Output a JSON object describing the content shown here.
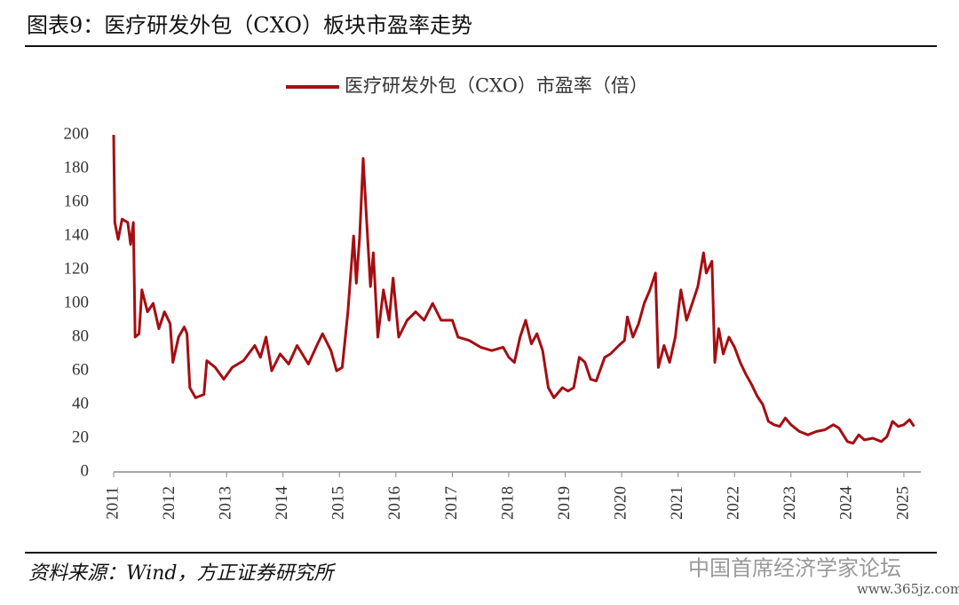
{
  "chart_data": {
    "type": "line",
    "title": "图表9：医疗研发外包（CXO）板块市盈率走势",
    "source": "资料来源：Wind，方正证券研究所",
    "watermark": "中国首席经济学家论坛",
    "watermark_url": "www.365jz.com",
    "x": [
      2011.0,
      2011.02,
      2011.08,
      2011.15,
      2011.25,
      2011.3,
      2011.35,
      2011.38,
      2011.45,
      2011.5,
      2011.6,
      2011.7,
      2011.8,
      2011.9,
      2012.0,
      2012.05,
      2012.15,
      2012.25,
      2012.3,
      2012.35,
      2012.45,
      2012.6,
      2012.65,
      2012.8,
      2012.95,
      2013.1,
      2013.3,
      2013.5,
      2013.6,
      2013.7,
      2013.8,
      2013.95,
      2014.1,
      2014.25,
      2014.45,
      2014.6,
      2014.7,
      2014.85,
      2014.95,
      2015.05,
      2015.15,
      2015.25,
      2015.3,
      2015.36,
      2015.42,
      2015.48,
      2015.55,
      2015.6,
      2015.68,
      2015.78,
      2015.88,
      2015.95,
      2016.05,
      2016.2,
      2016.35,
      2016.5,
      2016.65,
      2016.8,
      2017.0,
      2017.1,
      2017.3,
      2017.5,
      2017.7,
      2017.9,
      2018.0,
      2018.1,
      2018.2,
      2018.3,
      2018.4,
      2018.5,
      2018.6,
      2018.7,
      2018.8,
      2018.95,
      2019.05,
      2019.15,
      2019.25,
      2019.35,
      2019.45,
      2019.55,
      2019.7,
      2019.8,
      2019.95,
      2020.05,
      2020.1,
      2020.2,
      2020.3,
      2020.4,
      2020.5,
      2020.6,
      2020.65,
      2020.75,
      2020.85,
      2020.95,
      2021.0,
      2021.05,
      2021.15,
      2021.25,
      2021.35,
      2021.45,
      2021.5,
      2021.6,
      2021.65,
      2021.72,
      2021.8,
      2021.9,
      2022.0,
      2022.1,
      2022.2,
      2022.3,
      2022.4,
      2022.5,
      2022.6,
      2022.7,
      2022.8,
      2022.9,
      2023.0,
      2023.15,
      2023.3,
      2023.45,
      2023.6,
      2023.75,
      2023.85,
      2024.0,
      2024.1,
      2024.2,
      2024.3,
      2024.45,
      2024.6,
      2024.7,
      2024.8,
      2024.9,
      2025.0,
      2025.1,
      2025.18
    ],
    "series": [
      {
        "name": "医疗研发外包（CXO）市盈率（倍）",
        "color": "#a50d12",
        "values": [
          200,
          148,
          138,
          150,
          148,
          135,
          148,
          80,
          82,
          108,
          95,
          100,
          85,
          95,
          88,
          65,
          80,
          86,
          82,
          50,
          44,
          46,
          66,
          62,
          55,
          62,
          66,
          75,
          68,
          80,
          60,
          70,
          64,
          75,
          64,
          75,
          82,
          72,
          60,
          62,
          95,
          140,
          112,
          140,
          186,
          150,
          110,
          130,
          80,
          108,
          90,
          115,
          80,
          90,
          95,
          90,
          100,
          90,
          90,
          80,
          78,
          74,
          72,
          74,
          68,
          65,
          80,
          90,
          76,
          82,
          72,
          50,
          44,
          50,
          48,
          50,
          68,
          65,
          55,
          54,
          68,
          70,
          75,
          78,
          92,
          80,
          88,
          100,
          108,
          118,
          62,
          75,
          65,
          80,
          95,
          108,
          90,
          100,
          110,
          130,
          118,
          125,
          65,
          85,
          70,
          80,
          74,
          65,
          58,
          52,
          45,
          40,
          30,
          28,
          27,
          32,
          28,
          24,
          22,
          24,
          25,
          28,
          26,
          18,
          17,
          22,
          19,
          20,
          18,
          21,
          30,
          27,
          28,
          31,
          27
        ]
      }
    ],
    "xlim": [
      2011,
      2025.3
    ],
    "xticks": [
      2011,
      2012,
      2013,
      2014,
      2015,
      2016,
      2017,
      2018,
      2019,
      2020,
      2021,
      2022,
      2023,
      2024,
      2025
    ],
    "ylim": [
      0,
      200
    ],
    "yticks": [
      0,
      20,
      40,
      60,
      80,
      100,
      120,
      140,
      160,
      180,
      200
    ],
    "grid": false
  }
}
